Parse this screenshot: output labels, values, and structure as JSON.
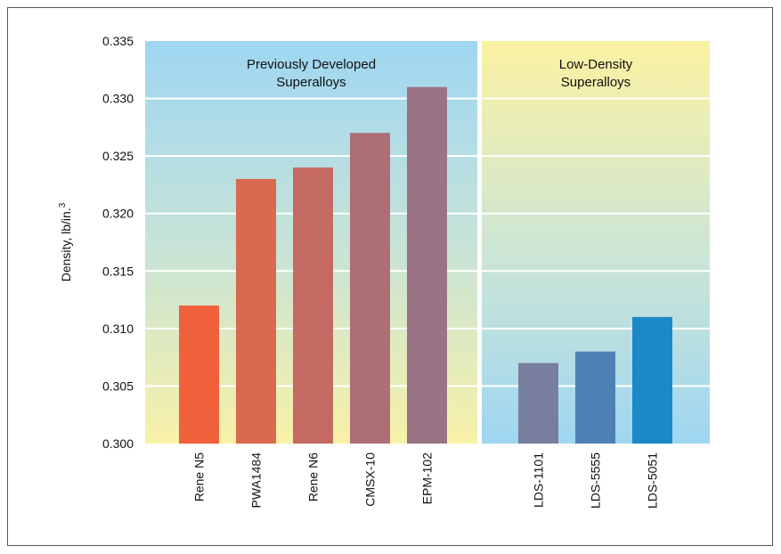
{
  "chart_data": {
    "type": "bar",
    "ylabel": "Density, lb/in.",
    "ylabel_superscript": "3",
    "ylim": [
      0.3,
      0.335
    ],
    "yticks": [
      "0.335",
      "0.330",
      "0.325",
      "0.320",
      "0.315",
      "0.310",
      "0.305",
      "0.300"
    ],
    "grid": true,
    "groups": [
      {
        "title_lines": [
          "Previously Developed",
          "Superalloys"
        ],
        "categories": [
          "Rene N5",
          "PWA1484",
          "Rene N6",
          "CMSX-10",
          "EPM-102"
        ],
        "values": [
          0.312,
          0.323,
          0.324,
          0.327,
          0.331
        ],
        "colors": [
          "#f0603a",
          "#d9694f",
          "#c46a63",
          "#ad6e76",
          "#9a7384"
        ]
      },
      {
        "title_lines": [
          "Low-Density",
          "Superalloys"
        ],
        "categories": [
          "LDS-1101",
          "LDS-5555",
          "LDS-5051"
        ],
        "values": [
          0.307,
          0.308,
          0.311
        ],
        "colors": [
          "#787f9e",
          "#4f80b3",
          "#1d88c8"
        ]
      }
    ]
  }
}
